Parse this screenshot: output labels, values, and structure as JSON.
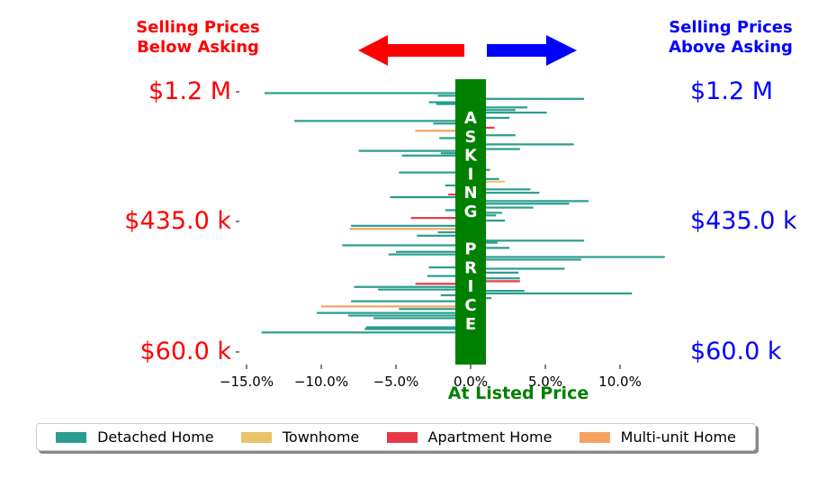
{
  "header": {
    "left_text": "Selling Prices\nBelow Asking",
    "right_text": "Selling Prices\nAbove Asking"
  },
  "colors": {
    "below": "#ff0000",
    "above": "#0000ff",
    "asking": "#008000",
    "detached": "#2a9d8f",
    "townhome": "#e9c46a",
    "apartment": "#e63946",
    "multiunit": "#f4a261"
  },
  "legend": [
    {
      "name": "Detached Home",
      "color": "#2a9d8f"
    },
    {
      "name": "Townhome",
      "color": "#e9c46a"
    },
    {
      "name": "Apartment Home",
      "color": "#e63946"
    },
    {
      "name": "Multi-unit Home",
      "color": "#f4a261"
    }
  ],
  "chart_data": {
    "type": "bar",
    "orientation": "horizontal",
    "asking_label": "ASKING PRICE",
    "xlabel": "At Listed Price",
    "xlim": [
      -16.5,
      13.2
    ],
    "xticks": [
      -15,
      -10,
      -5,
      0,
      5,
      10
    ],
    "xtick_labels": [
      "−15.0%",
      "−10.0%",
      "−5.0%",
      "0.0%",
      "5.0%",
      "10.0%"
    ],
    "ylim": [
      60000,
      1200000
    ],
    "yticks": [
      60000,
      435000,
      1200000
    ],
    "ytick_labels_left": [
      "$60.0 k",
      "$435.0 k",
      "$1.2 M"
    ],
    "ytick_labels_right": [
      "$60.0 k",
      "$435.0 k",
      "$1.2 M"
    ],
    "grid": false,
    "legend_position": "bottom",
    "bars": [
      {
        "type": "Detached Home",
        "v": -13.8,
        "pct": 0.995
      },
      {
        "type": "Detached Home",
        "v": -2.2,
        "pct": 0.985
      },
      {
        "type": "Detached Home",
        "v": 7.6,
        "pct": 0.973
      },
      {
        "type": "Detached Home",
        "v": -2.8,
        "pct": 0.96
      },
      {
        "type": "Detached Home",
        "v": -2.3,
        "pct": 0.953
      },
      {
        "type": "Detached Home",
        "v": 3.8,
        "pct": 0.94
      },
      {
        "type": "Detached Home",
        "v": 3.0,
        "pct": 0.93
      },
      {
        "type": "Detached Home",
        "v": 5.1,
        "pct": 0.92
      },
      {
        "type": "Detached Home",
        "v": 2.6,
        "pct": 0.9
      },
      {
        "type": "Detached Home",
        "v": -11.8,
        "pct": 0.888
      },
      {
        "type": "Detached Home",
        "v": -2.5,
        "pct": 0.878
      },
      {
        "type": "Apartment Home",
        "v": 1.6,
        "pct": 0.862
      },
      {
        "type": "Multi-unit Home",
        "v": -3.7,
        "pct": 0.85
      },
      {
        "type": "Detached Home",
        "v": 3.0,
        "pct": 0.833
      },
      {
        "type": "Detached Home",
        "v": -2.1,
        "pct": 0.822
      },
      {
        "type": "Detached Home",
        "v": 6.9,
        "pct": 0.798
      },
      {
        "type": "Detached Home",
        "v": 3.3,
        "pct": 0.78
      },
      {
        "type": "Detached Home",
        "v": -7.5,
        "pct": 0.773
      },
      {
        "type": "Detached Home",
        "v": -2.0,
        "pct": 0.764
      },
      {
        "type": "Detached Home",
        "v": -4.6,
        "pct": 0.755
      },
      {
        "type": "Detached Home",
        "v": 1.3,
        "pct": 0.7
      },
      {
        "type": "Detached Home",
        "v": -4.8,
        "pct": 0.69
      },
      {
        "type": "Detached Home",
        "v": 1.9,
        "pct": 0.665
      },
      {
        "type": "Townhome",
        "v": 2.3,
        "pct": 0.655
      },
      {
        "type": "Detached Home",
        "v": -1.7,
        "pct": 0.64
      },
      {
        "type": "Detached Home",
        "v": 4.0,
        "pct": 0.625
      },
      {
        "type": "Detached Home",
        "v": 4.6,
        "pct": 0.612
      },
      {
        "type": "Apartment Home",
        "v": -1.5,
        "pct": 0.605
      },
      {
        "type": "Detached Home",
        "v": -5.4,
        "pct": 0.595
      },
      {
        "type": "Detached Home",
        "v": 7.9,
        "pct": 0.58
      },
      {
        "type": "Detached Home",
        "v": 6.6,
        "pct": 0.57
      },
      {
        "type": "Detached Home",
        "v": 4.2,
        "pct": 0.555
      },
      {
        "type": "Detached Home",
        "v": 2.1,
        "pct": 0.535
      },
      {
        "type": "Detached Home",
        "v": -1.7,
        "pct": 0.545
      },
      {
        "type": "Detached Home",
        "v": 1.7,
        "pct": 0.525
      },
      {
        "type": "Apartment Home",
        "v": -4.0,
        "pct": 0.515
      },
      {
        "type": "Detached Home",
        "v": 2.3,
        "pct": 0.505
      },
      {
        "type": "Detached Home",
        "v": -8.0,
        "pct": 0.485
      },
      {
        "type": "Multi-unit Home",
        "v": -8.1,
        "pct": 0.473
      },
      {
        "type": "Detached Home",
        "v": -2.2,
        "pct": 0.46
      },
      {
        "type": "Detached Home",
        "v": -3.6,
        "pct": 0.447
      },
      {
        "type": "Detached Home",
        "v": 7.6,
        "pct": 0.428
      },
      {
        "type": "Detached Home",
        "v": 1.8,
        "pct": 0.42
      },
      {
        "type": "Detached Home",
        "v": -8.6,
        "pct": 0.41
      },
      {
        "type": "Detached Home",
        "v": 2.6,
        "pct": 0.4
      },
      {
        "type": "Detached Home",
        "v": -5.0,
        "pct": 0.385
      },
      {
        "type": "Detached Home",
        "v": -5.5,
        "pct": 0.375
      },
      {
        "type": "Detached Home",
        "v": 13.0,
        "pct": 0.365
      },
      {
        "type": "Detached Home",
        "v": 7.4,
        "pct": 0.355
      },
      {
        "type": "Detached Home",
        "v": 6.3,
        "pct": 0.32
      },
      {
        "type": "Detached Home",
        "v": -2.8,
        "pct": 0.325
      },
      {
        "type": "Detached Home",
        "v": 3.2,
        "pct": 0.305
      },
      {
        "type": "Detached Home",
        "v": -2.9,
        "pct": 0.292
      },
      {
        "type": "Detached Home",
        "v": 3.3,
        "pct": 0.283
      },
      {
        "type": "Apartment Home",
        "v": 3.3,
        "pct": 0.272
      },
      {
        "type": "Apartment Home",
        "v": -3.7,
        "pct": 0.262
      },
      {
        "type": "Detached Home",
        "v": -7.8,
        "pct": 0.25
      },
      {
        "type": "Detached Home",
        "v": -6.2,
        "pct": 0.24
      },
      {
        "type": "Detached Home",
        "v": 3.6,
        "pct": 0.235
      },
      {
        "type": "Detached Home",
        "v": 10.8,
        "pct": 0.225
      },
      {
        "type": "Detached Home",
        "v": -2.0,
        "pct": 0.218
      },
      {
        "type": "Detached Home",
        "v": 1.4,
        "pct": 0.207
      },
      {
        "type": "Detached Home",
        "v": -8.0,
        "pct": 0.195
      },
      {
        "type": "Multi-unit Home",
        "v": -10.0,
        "pct": 0.175
      },
      {
        "type": "Detached Home",
        "v": -4.8,
        "pct": 0.165
      },
      {
        "type": "Detached Home",
        "v": -10.3,
        "pct": 0.15
      },
      {
        "type": "Detached Home",
        "v": -8.2,
        "pct": 0.14
      },
      {
        "type": "Detached Home",
        "v": -6.5,
        "pct": 0.13
      },
      {
        "type": "Detached Home",
        "v": -7.0,
        "pct": 0.095
      },
      {
        "type": "Detached Home",
        "v": -7.1,
        "pct": 0.088
      },
      {
        "type": "Detached Home",
        "v": -14.0,
        "pct": 0.075
      }
    ]
  }
}
